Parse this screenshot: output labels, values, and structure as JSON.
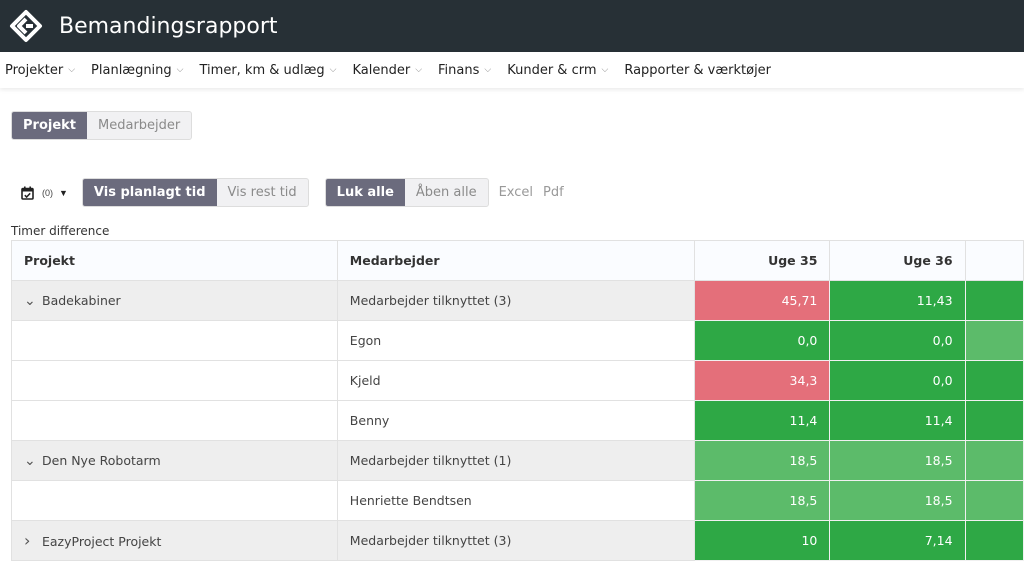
{
  "app": {
    "title": "Bemandingsrapport",
    "logo_icon": "eazyproject-logo"
  },
  "nav": [
    {
      "label": "Projekter",
      "dropdown": true
    },
    {
      "label": "Planlægning",
      "dropdown": true
    },
    {
      "label": "Timer, km & udlæg",
      "dropdown": true
    },
    {
      "label": "Kalender",
      "dropdown": true
    },
    {
      "label": "Finans",
      "dropdown": true
    },
    {
      "label": "Kunder & crm",
      "dropdown": true
    },
    {
      "label": "Rapporter & værktøjer",
      "dropdown": false
    }
  ],
  "view_toggle": {
    "options": [
      "Projekt",
      "Medarbejder"
    ],
    "active": "Projekt"
  },
  "toolbar": {
    "calendar_count": "(0)",
    "plan_toggle": [
      "Vis planlagt tid",
      "Vis rest tid"
    ],
    "plan_active": "Vis planlagt tid",
    "expand_toggle": [
      "Luk alle",
      "Åben alle"
    ],
    "expand_active": "Luk alle",
    "excel": "Excel",
    "pdf": "Pdf"
  },
  "table": {
    "caption": "Timer difference",
    "headers": {
      "project": "Projekt",
      "employee": "Medarbejder",
      "weeks": [
        "Uge 35",
        "Uge 36"
      ]
    },
    "rows": [
      {
        "type": "group",
        "expanded": true,
        "project": "Badekabiner",
        "employee": "Medarbejder tilknyttet (3)",
        "values": [
          "45,71",
          "11,43"
        ],
        "colors": [
          "red",
          "green",
          "green"
        ]
      },
      {
        "type": "child",
        "project": "",
        "employee": "Egon",
        "values": [
          "0,0",
          "0,0"
        ],
        "colors": [
          "green",
          "green",
          "lgreen"
        ]
      },
      {
        "type": "child",
        "project": "",
        "employee": "Kjeld",
        "values": [
          "34,3",
          "0,0"
        ],
        "colors": [
          "red",
          "green",
          "green"
        ]
      },
      {
        "type": "child",
        "project": "",
        "employee": "Benny",
        "values": [
          "11,4",
          "11,4"
        ],
        "colors": [
          "green",
          "green",
          "green"
        ]
      },
      {
        "type": "group",
        "expanded": true,
        "project": "Den Nye Robotarm",
        "employee": "Medarbejder tilknyttet (1)",
        "values": [
          "18,5",
          "18,5"
        ],
        "colors": [
          "lgreen",
          "lgreen",
          "lgreen"
        ]
      },
      {
        "type": "child",
        "project": "",
        "employee": "Henriette Bendtsen",
        "values": [
          "18,5",
          "18,5"
        ],
        "colors": [
          "lgreen",
          "lgreen",
          "lgreen"
        ]
      },
      {
        "type": "group",
        "expanded": false,
        "project": "EazyProject Projekt",
        "employee": "Medarbejder tilknyttet (3)",
        "values": [
          "10",
          "7,14"
        ],
        "colors": [
          "green",
          "green",
          "green"
        ]
      }
    ]
  },
  "colors": {
    "red": "#e46f7a",
    "green": "#2ea845",
    "lgreen": "#5cbb6a",
    "topbar": "#273036",
    "toggle_active": "#6b6b7d"
  }
}
